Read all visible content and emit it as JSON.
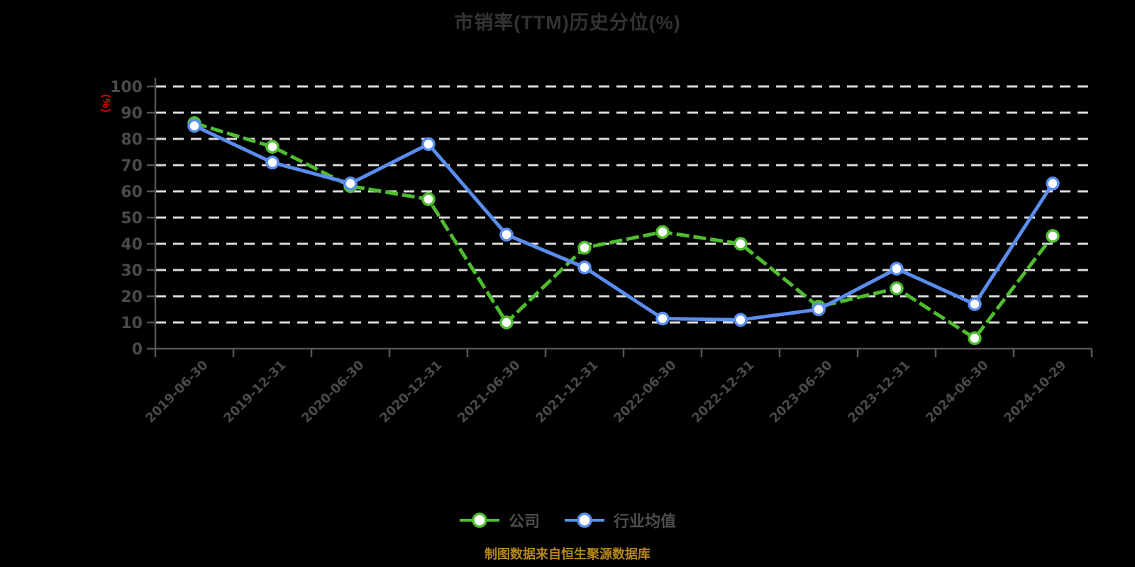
{
  "title": "市销率(TTM)历史分位(%)",
  "y_axis_unit": "(%)",
  "footer": "制图数据来自恒生聚源数据库",
  "legend": {
    "items": [
      {
        "label": "公司"
      },
      {
        "label": "行业均值"
      }
    ]
  },
  "colors": {
    "background": "#000000",
    "title": "#333333",
    "company_green": "#50BC30",
    "industry_blue": "#5A8DEE",
    "axis_unit_red": "#E60000",
    "footer_gold": "#B5861B",
    "tick_label": "#4A4A4A",
    "gridline": "#DCDCDC",
    "axis_line": "#555555",
    "marker_fill": "#FFFFFF"
  },
  "chart_data": {
    "type": "line",
    "title": "市销率(TTM)历史分位(%)",
    "categories": [
      "2019-06-30",
      "2019-12-31",
      "2020-06-30",
      "2020-12-31",
      "2021-06-30",
      "2021-12-31",
      "2022-06-30",
      "2022-12-31",
      "2023-06-30",
      "2023-12-31",
      "2024-06-30",
      "2024-10-29"
    ],
    "series": [
      {
        "id": "company",
        "name": "公司",
        "color": "#50BC30",
        "style": "dashed",
        "values": [
          86,
          77,
          62,
          57,
          10,
          38.5,
          44.5,
          40,
          16,
          23,
          4,
          43
        ]
      },
      {
        "id": "industry",
        "name": "行业均值",
        "color": "#5A8DEE",
        "style": "solid",
        "values": [
          85,
          71,
          63,
          78,
          43.5,
          31,
          11.5,
          11,
          15,
          30.5,
          17,
          63
        ]
      }
    ],
    "xlabel": "",
    "ylabel": "(%)",
    "ylim": [
      0,
      100
    ],
    "y_ticks": [
      0,
      10,
      20,
      30,
      40,
      50,
      60,
      70,
      80,
      90,
      100
    ],
    "grid": "dashed-horizontal",
    "legend_position": "bottom",
    "x_label_rotation": -45
  }
}
